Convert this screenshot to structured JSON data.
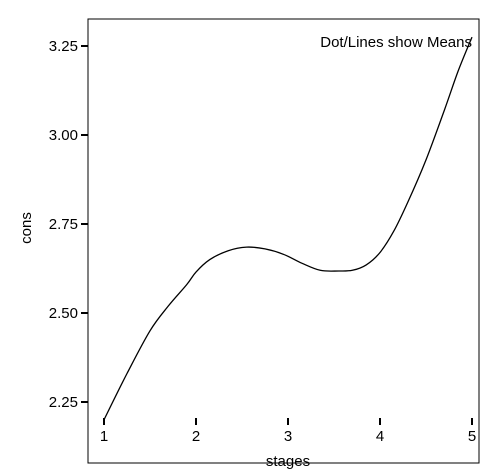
{
  "chart_data": {
    "type": "line",
    "title": "",
    "annotation": "Dot/Lines show Means",
    "xlabel": "stages",
    "ylabel": "cons",
    "x_ticks": [
      "1",
      "2",
      "3",
      "4",
      "5"
    ],
    "y_ticks": [
      "2.25",
      "2.50",
      "2.75",
      "3.00",
      "3.25"
    ],
    "xlim": [
      0.9,
      5.1
    ],
    "ylim": [
      2.17,
      3.32
    ],
    "grid": false,
    "series": [
      {
        "color": "#000000",
        "x": [
          1.0,
          1.25,
          1.5,
          1.7,
          1.9,
          2.0,
          2.15,
          2.35,
          2.55,
          2.75,
          2.95,
          3.15,
          3.35,
          3.55,
          3.7,
          3.85,
          4.0,
          4.15,
          4.3,
          4.5,
          4.7,
          4.85,
          5.0
        ],
        "y": [
          2.2,
          2.33,
          2.45,
          2.52,
          2.58,
          2.615,
          2.65,
          2.675,
          2.685,
          2.68,
          2.665,
          2.64,
          2.62,
          2.618,
          2.62,
          2.635,
          2.67,
          2.73,
          2.81,
          2.93,
          3.07,
          3.18,
          3.275
        ]
      }
    ]
  }
}
